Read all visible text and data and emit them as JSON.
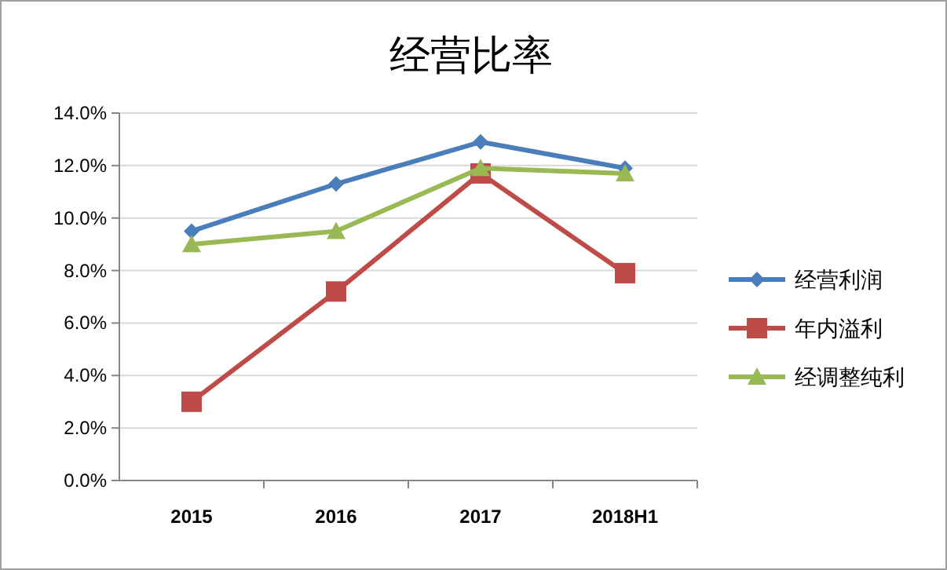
{
  "chart_data": {
    "type": "line",
    "title": "经营比率",
    "categories": [
      "2015",
      "2016",
      "2017",
      "2018H1"
    ],
    "series": [
      {
        "name": "经营利润",
        "color": "#4a7ebb",
        "marker": "diamond",
        "values": [
          9.5,
          11.3,
          12.9,
          11.9
        ]
      },
      {
        "name": "年内溢利",
        "color": "#be4b48",
        "marker": "square",
        "values": [
          3.0,
          7.2,
          11.7,
          7.9
        ]
      },
      {
        "name": "经调整纯利",
        "color": "#98b954",
        "marker": "triangle",
        "values": [
          9.0,
          9.5,
          11.9,
          11.7
        ]
      }
    ],
    "ylim": [
      0,
      14
    ],
    "yticks": [
      {
        "value": 0,
        "label": "0.0%"
      },
      {
        "value": 2,
        "label": "2.0%"
      },
      {
        "value": 4,
        "label": "4.0%"
      },
      {
        "value": 6,
        "label": "6.0%"
      },
      {
        "value": 8,
        "label": "8.0%"
      },
      {
        "value": 10,
        "label": "10.0%"
      },
      {
        "value": 12,
        "label": "12.0%"
      },
      {
        "value": 14,
        "label": "14.0%"
      }
    ],
    "grid": "y",
    "legend": "right",
    "line_style": "solid"
  }
}
